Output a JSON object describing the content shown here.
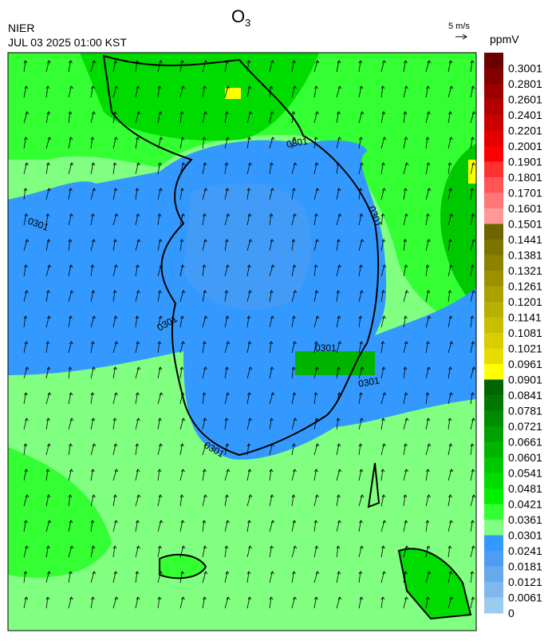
{
  "header": {
    "title": "O",
    "title_subscript": "3",
    "agency": "NIER",
    "timestamp": "JUL 03 2025 01:00 KST"
  },
  "wind_legend": {
    "label": "5 m/s"
  },
  "colorbar": {
    "unit": "ppmV",
    "labels": [
      "0.3001",
      "0.2801",
      "0.2601",
      "0.2401",
      "0.2201",
      "0.2001",
      "0.1901",
      "0.1801",
      "0.1701",
      "0.1601",
      "0.1501",
      "0.1441",
      "0.1381",
      "0.1321",
      "0.1261",
      "0.1201",
      "0.1141",
      "0.1081",
      "0.1021",
      "0.0961",
      "0.0901",
      "0.0841",
      "0.0781",
      "0.0721",
      "0.0661",
      "0.0601",
      "0.0541",
      "0.0481",
      "0.0421",
      "0.0361",
      "0.0301",
      "0.0241",
      "0.0181",
      "0.0121",
      "0.0061",
      "0"
    ],
    "colors": [
      "#6b0000",
      "#830000",
      "#9b0000",
      "#b40000",
      "#cc0000",
      "#e50000",
      "#ff0000",
      "#ff3030",
      "#ff5555",
      "#ff7777",
      "#ff9999",
      "#6e6400",
      "#7d7300",
      "#8c8200",
      "#9b9100",
      "#aaa000",
      "#b9af00",
      "#c8be00",
      "#d7cd00",
      "#e6dc00",
      "#ffff00",
      "#006400",
      "#007800",
      "#008c00",
      "#00a000",
      "#00b400",
      "#00c800",
      "#00dc00",
      "#00f000",
      "#33ff33",
      "#80ff80",
      "#3399ff",
      "#4d9ef2",
      "#66aaee",
      "#80b8ee",
      "#99ccee"
    ]
  },
  "contour_labels": [
    "0301",
    "0301",
    "0301",
    "0301",
    "0301",
    "0301",
    "0301"
  ]
}
